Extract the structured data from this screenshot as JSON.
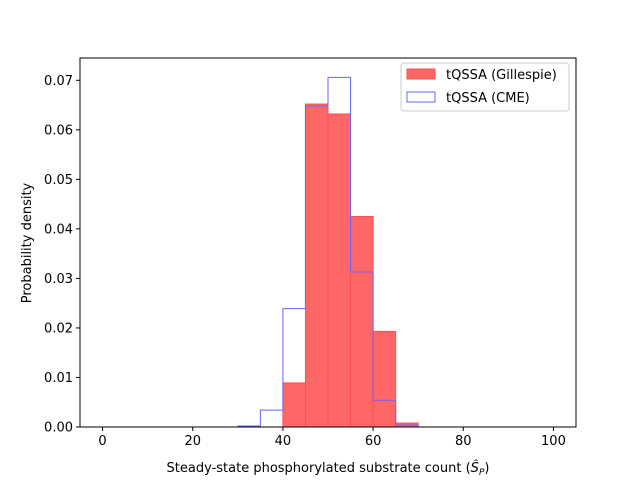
{
  "chart_data": {
    "type": "bar",
    "title": "",
    "xlabel": "Steady-state phosphorylated substrate count",
    "xlabel_symbol": "Ŝ",
    "xlabel_subscript": "P",
    "ylabel": "Probability density",
    "xlim": [
      -5,
      105
    ],
    "ylim": [
      0,
      0.0745
    ],
    "xticks": [
      0,
      20,
      40,
      60,
      80,
      100
    ],
    "xtick_labels": [
      "0",
      "20",
      "40",
      "60",
      "80",
      "100"
    ],
    "yticks": [
      0.0,
      0.01,
      0.02,
      0.03,
      0.04,
      0.05,
      0.06,
      0.07
    ],
    "ytick_labels": [
      "0.00",
      "0.01",
      "0.02",
      "0.03",
      "0.04",
      "0.05",
      "0.06",
      "0.07"
    ],
    "legend_position": "upper right",
    "series": [
      {
        "name": "tQSSA (Gillespie)",
        "style": "filled",
        "color": "#ff6666",
        "edge_color": "#ff5050",
        "bin_edges": [
          40,
          45,
          50,
          55,
          60,
          65,
          70
        ],
        "values": [
          0.0089,
          0.0652,
          0.0632,
          0.0425,
          0.0193,
          0.0008
        ]
      },
      {
        "name": "tQSSA (CME)",
        "style": "step",
        "color": "#6666ff",
        "bin_edges": [
          0,
          5,
          10,
          15,
          20,
          25,
          30,
          35,
          40,
          45,
          50,
          55,
          60,
          65,
          70,
          75,
          80,
          85,
          90,
          95,
          100
        ],
        "values": [
          0,
          0,
          0,
          0,
          0,
          0,
          0.0002,
          0.0034,
          0.0239,
          0.0648,
          0.0706,
          0.0313,
          0.0054,
          0.0004,
          0,
          0,
          0,
          0,
          0,
          0
        ]
      }
    ]
  }
}
